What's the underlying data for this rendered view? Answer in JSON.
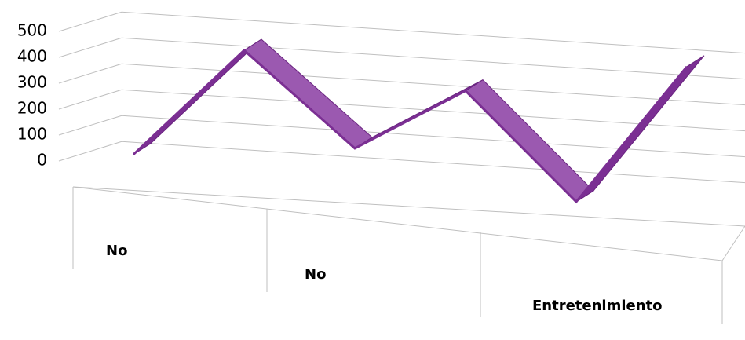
{
  "chart_data": {
    "type": "line3d",
    "categories": [
      "No",
      null,
      "No",
      null,
      "Entretenimiento",
      null
    ],
    "values": [
      20,
      450,
      100,
      350,
      -50,
      500
    ],
    "color": "#7b2f93",
    "ylim": [
      0,
      500
    ],
    "yticks": [
      0,
      100,
      200,
      300,
      400,
      500
    ],
    "grid": true
  }
}
